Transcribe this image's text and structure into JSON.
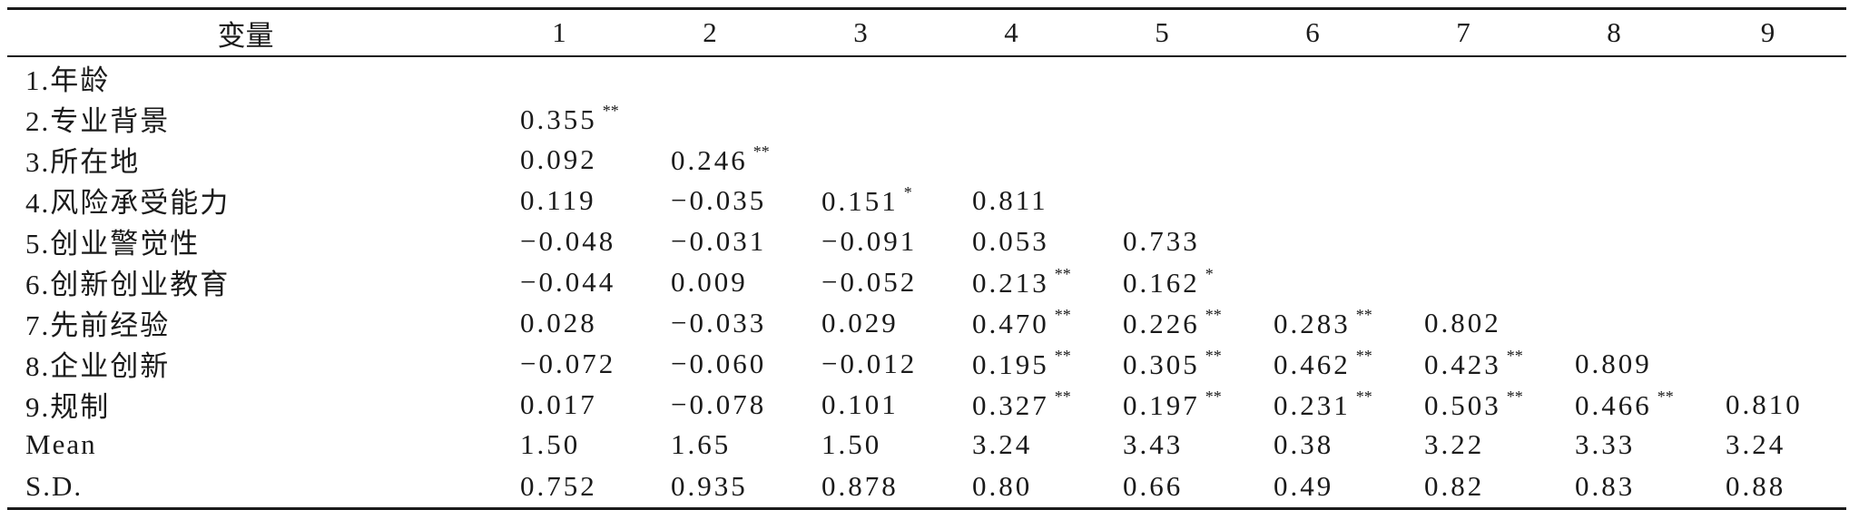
{
  "table": {
    "headers": [
      "变量",
      "1",
      "2",
      "3",
      "4",
      "5",
      "6",
      "7",
      "8",
      "9"
    ],
    "rows": [
      {
        "label": "1.年龄",
        "cells": [
          {
            "v": "",
            "s": ""
          },
          {
            "v": "",
            "s": ""
          },
          {
            "v": "",
            "s": ""
          },
          {
            "v": "",
            "s": ""
          },
          {
            "v": "",
            "s": ""
          },
          {
            "v": "",
            "s": ""
          },
          {
            "v": "",
            "s": ""
          },
          {
            "v": "",
            "s": ""
          },
          {
            "v": "",
            "s": ""
          }
        ]
      },
      {
        "label": "2.专业背景",
        "cells": [
          {
            "v": "0.355",
            "s": "**"
          },
          {
            "v": "",
            "s": ""
          },
          {
            "v": "",
            "s": ""
          },
          {
            "v": "",
            "s": ""
          },
          {
            "v": "",
            "s": ""
          },
          {
            "v": "",
            "s": ""
          },
          {
            "v": "",
            "s": ""
          },
          {
            "v": "",
            "s": ""
          },
          {
            "v": "",
            "s": ""
          }
        ]
      },
      {
        "label": "3.所在地",
        "cells": [
          {
            "v": "0.092",
            "s": ""
          },
          {
            "v": "0.246",
            "s": "**"
          },
          {
            "v": "",
            "s": ""
          },
          {
            "v": "",
            "s": ""
          },
          {
            "v": "",
            "s": ""
          },
          {
            "v": "",
            "s": ""
          },
          {
            "v": "",
            "s": ""
          },
          {
            "v": "",
            "s": ""
          },
          {
            "v": "",
            "s": ""
          }
        ]
      },
      {
        "label": "4.风险承受能力",
        "cells": [
          {
            "v": "0.119",
            "s": ""
          },
          {
            "v": "−0.035",
            "s": ""
          },
          {
            "v": "0.151",
            "s": "*"
          },
          {
            "v": "0.811",
            "s": ""
          },
          {
            "v": "",
            "s": ""
          },
          {
            "v": "",
            "s": ""
          },
          {
            "v": "",
            "s": ""
          },
          {
            "v": "",
            "s": ""
          },
          {
            "v": "",
            "s": ""
          }
        ]
      },
      {
        "label": "5.创业警觉性",
        "cells": [
          {
            "v": "−0.048",
            "s": ""
          },
          {
            "v": "−0.031",
            "s": ""
          },
          {
            "v": "−0.091",
            "s": ""
          },
          {
            "v": "0.053",
            "s": ""
          },
          {
            "v": "0.733",
            "s": ""
          },
          {
            "v": "",
            "s": ""
          },
          {
            "v": "",
            "s": ""
          },
          {
            "v": "",
            "s": ""
          },
          {
            "v": "",
            "s": ""
          }
        ]
      },
      {
        "label": "6.创新创业教育",
        "cells": [
          {
            "v": "−0.044",
            "s": ""
          },
          {
            "v": "0.009",
            "s": ""
          },
          {
            "v": "−0.052",
            "s": ""
          },
          {
            "v": "0.213",
            "s": "**"
          },
          {
            "v": "0.162",
            "s": "*"
          },
          {
            "v": "",
            "s": ""
          },
          {
            "v": "",
            "s": ""
          },
          {
            "v": "",
            "s": ""
          },
          {
            "v": "",
            "s": ""
          }
        ]
      },
      {
        "label": "7.先前经验",
        "cells": [
          {
            "v": "0.028",
            "s": ""
          },
          {
            "v": "−0.033",
            "s": ""
          },
          {
            "v": "0.029",
            "s": ""
          },
          {
            "v": "0.470",
            "s": "**"
          },
          {
            "v": "0.226",
            "s": "**"
          },
          {
            "v": "0.283",
            "s": "**"
          },
          {
            "v": "0.802",
            "s": ""
          },
          {
            "v": "",
            "s": ""
          },
          {
            "v": "",
            "s": ""
          }
        ]
      },
      {
        "label": "8.企业创新",
        "cells": [
          {
            "v": "−0.072",
            "s": ""
          },
          {
            "v": "−0.060",
            "s": ""
          },
          {
            "v": "−0.012",
            "s": ""
          },
          {
            "v": "0.195",
            "s": "**"
          },
          {
            "v": "0.305",
            "s": "**"
          },
          {
            "v": "0.462",
            "s": "**"
          },
          {
            "v": "0.423",
            "s": "**"
          },
          {
            "v": "0.809",
            "s": ""
          },
          {
            "v": "",
            "s": ""
          }
        ]
      },
      {
        "label": "9.规制",
        "cells": [
          {
            "v": "0.017",
            "s": ""
          },
          {
            "v": "−0.078",
            "s": ""
          },
          {
            "v": "0.101",
            "s": ""
          },
          {
            "v": "0.327",
            "s": "**"
          },
          {
            "v": "0.197",
            "s": "**"
          },
          {
            "v": "0.231",
            "s": "**"
          },
          {
            "v": "0.503",
            "s": "**"
          },
          {
            "v": "0.466",
            "s": "**"
          },
          {
            "v": "0.810",
            "s": ""
          }
        ]
      },
      {
        "label": "Mean",
        "cells": [
          {
            "v": "1.50",
            "s": ""
          },
          {
            "v": "1.65",
            "s": ""
          },
          {
            "v": "1.50",
            "s": ""
          },
          {
            "v": "3.24",
            "s": ""
          },
          {
            "v": "3.43",
            "s": ""
          },
          {
            "v": "0.38",
            "s": ""
          },
          {
            "v": "3.22",
            "s": ""
          },
          {
            "v": "3.33",
            "s": ""
          },
          {
            "v": "3.24",
            "s": ""
          }
        ]
      },
      {
        "label": "S.D.",
        "cells": [
          {
            "v": "0.752",
            "s": ""
          },
          {
            "v": "0.935",
            "s": ""
          },
          {
            "v": "0.878",
            "s": ""
          },
          {
            "v": "0.80",
            "s": ""
          },
          {
            "v": "0.66",
            "s": ""
          },
          {
            "v": "0.49",
            "s": ""
          },
          {
            "v": "0.82",
            "s": ""
          },
          {
            "v": "0.83",
            "s": ""
          },
          {
            "v": "0.88",
            "s": ""
          }
        ]
      }
    ]
  }
}
